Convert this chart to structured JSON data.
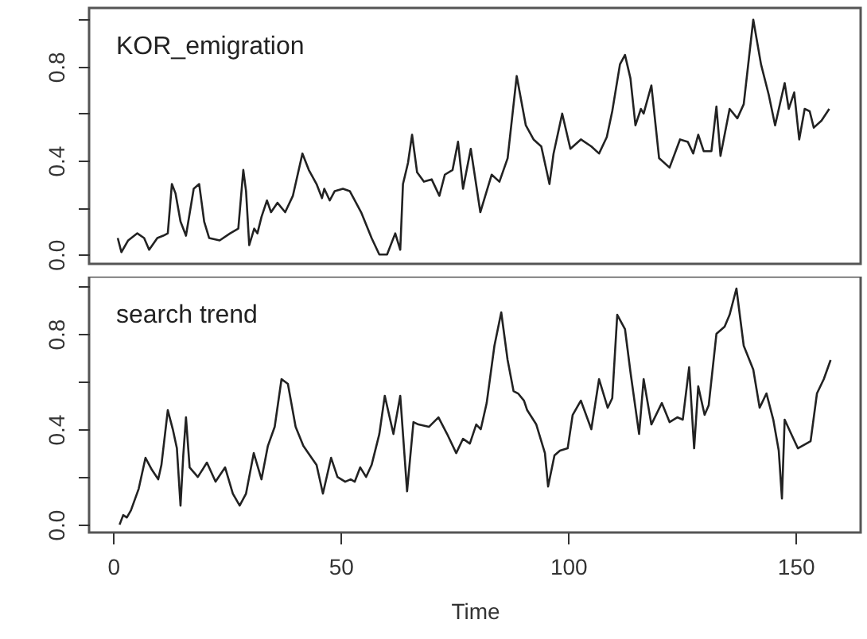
{
  "chart_data": [
    {
      "type": "line",
      "annotations": [
        "KOR_emigration"
      ],
      "tick_labels": "y",
      "xlim": [
        -5.3,
        164.3
      ],
      "xticks": [
        0,
        50,
        100,
        150
      ],
      "ylim": [
        -0.04,
        1.05
      ],
      "yticks": [
        {
          "value": 0,
          "label": "0.0"
        },
        {
          "value": 0.2,
          "label": null
        },
        {
          "value": 0.4,
          "label": "0.4"
        },
        {
          "value": 0.6,
          "label": null
        },
        {
          "value": 0.8,
          "label": "0.8"
        },
        {
          "value": 1.0,
          "label": null
        }
      ],
      "x": [
        1,
        1.8,
        3.3,
        5.3,
        6.8,
        7.9,
        9.7,
        11,
        12,
        12.9,
        13.7,
        14.8,
        16,
        17.7,
        18.9,
        20,
        21.1,
        23.4,
        25.7,
        27.5,
        28.6,
        29.2,
        29.9,
        31,
        31.7,
        32.6,
        33.8,
        34.7,
        36.1,
        37.8,
        39.5,
        41.6,
        43,
        44.7,
        45.9,
        46.4,
        47.6,
        48.7,
        50.5,
        52,
        54.5,
        56.8,
        58.5,
        60.2,
        62,
        63.1,
        63.7,
        64.8,
        65.7,
        66.8,
        68.3,
        70,
        71.7,
        72.9,
        74.6,
        75.8,
        76.9,
        78.6,
        80.7,
        83.2,
        84.9,
        86.7,
        88.7,
        90.7,
        92.4,
        94.1,
        95.9,
        96.8,
        98.7,
        100.5,
        102.8,
        105.1,
        106.8,
        108.5,
        109.7,
        111.4,
        112.5,
        113.7,
        114.8,
        116,
        116.6,
        118.3,
        120,
        122.3,
        124.6,
        126.3,
        127.5,
        128.6,
        129.8,
        131.5,
        132.6,
        133.5,
        135.5,
        137.2,
        138.6,
        140.7,
        142.4,
        144.1,
        145.5,
        147.6,
        148.5,
        149.7,
        150.8,
        152,
        153.1,
        154,
        155.7,
        157.4
      ],
      "series": [
        {
          "color": "#222222",
          "values": [
            0.07,
            0.01,
            0.06,
            0.09,
            0.07,
            0.02,
            0.07,
            0.08,
            0.09,
            0.3,
            0.26,
            0.14,
            0.08,
            0.28,
            0.3,
            0.14,
            0.07,
            0.06,
            0.09,
            0.11,
            0.36,
            0.27,
            0.04,
            0.11,
            0.09,
            0.16,
            0.23,
            0.18,
            0.22,
            0.18,
            0.25,
            0.43,
            0.36,
            0.3,
            0.24,
            0.28,
            0.23,
            0.27,
            0.28,
            0.27,
            0.18,
            0.07,
            0.0,
            0.0,
            0.09,
            0.02,
            0.3,
            0.39,
            0.51,
            0.35,
            0.31,
            0.32,
            0.25,
            0.34,
            0.36,
            0.48,
            0.28,
            0.45,
            0.18,
            0.34,
            0.31,
            0.41,
            0.76,
            0.55,
            0.49,
            0.46,
            0.3,
            0.43,
            0.6,
            0.45,
            0.49,
            0.46,
            0.43,
            0.5,
            0.61,
            0.81,
            0.85,
            0.75,
            0.55,
            0.62,
            0.6,
            0.72,
            0.41,
            0.37,
            0.49,
            0.48,
            0.43,
            0.51,
            0.44,
            0.44,
            0.63,
            0.42,
            0.62,
            0.58,
            0.64,
            1.0,
            0.81,
            0.68,
            0.55,
            0.73,
            0.62,
            0.69,
            0.49,
            0.62,
            0.61,
            0.54,
            0.57,
            0.62
          ]
        }
      ]
    },
    {
      "type": "line",
      "annotations": [
        "search trend"
      ],
      "xlabel": "Time",
      "xlim": [
        -5.3,
        164.3
      ],
      "xticks": [
        0,
        50,
        100,
        150
      ],
      "ylim": [
        -0.033,
        1.04
      ],
      "yticks": [
        {
          "value": 0,
          "label": "0.0"
        },
        {
          "value": 0.2,
          "label": null
        },
        {
          "value": 0.4,
          "label": "0.4"
        },
        {
          "value": 0.6,
          "label": null
        },
        {
          "value": 0.8,
          "label": "0.8"
        },
        {
          "value": 1.0,
          "label": null
        }
      ],
      "x": [
        1.4,
        2.2,
        3,
        3.9,
        5.6,
        7.1,
        8.5,
        9.9,
        10.6,
        12,
        13.1,
        14,
        14.8,
        15.4,
        16,
        16.8,
        18.6,
        20.6,
        22.5,
        24.6,
        26.3,
        27.8,
        29.2,
        30.9,
        32.6,
        34,
        35.5,
        37,
        38.4,
        40.1,
        41.8,
        43.6,
        44.7,
        46.1,
        47.9,
        49.3,
        51,
        52.2,
        53.1,
        54.3,
        55.6,
        56.8,
        58.5,
        59.7,
        61.6,
        63.1,
        64.6,
        66,
        67.1,
        69.4,
        71.5,
        73.4,
        75.4,
        76.9,
        78.4,
        79.8,
        80.8,
        82.1,
        83.8,
        85.3,
        86.7,
        88,
        89,
        90.3,
        91,
        93,
        94.9,
        95.6,
        97,
        98.2,
        99.9,
        101,
        102.8,
        105.1,
        106.8,
        108.7,
        109.7,
        110.8,
        112.5,
        113.7,
        115.6,
        116.6,
        118.3,
        120.6,
        122.3,
        124,
        125.2,
        126.6,
        127.7,
        128.6,
        130,
        130.9,
        132.6,
        134.4,
        135.5,
        137,
        138.6,
        140.7,
        142.1,
        143.6,
        145.1,
        146.3,
        147,
        147.6,
        148.8,
        150.5,
        153.3,
        154.7,
        156.2,
        157.7
      ],
      "series": [
        {
          "color": "#222222",
          "values": [
            0.0,
            0.04,
            0.03,
            0.06,
            0.15,
            0.28,
            0.23,
            0.19,
            0.25,
            0.48,
            0.4,
            0.32,
            0.08,
            0.29,
            0.45,
            0.24,
            0.2,
            0.26,
            0.18,
            0.24,
            0.13,
            0.08,
            0.13,
            0.3,
            0.19,
            0.33,
            0.41,
            0.61,
            0.59,
            0.41,
            0.33,
            0.28,
            0.25,
            0.13,
            0.28,
            0.2,
            0.18,
            0.19,
            0.18,
            0.24,
            0.2,
            0.25,
            0.38,
            0.54,
            0.38,
            0.54,
            0.14,
            0.43,
            0.42,
            0.41,
            0.45,
            0.38,
            0.3,
            0.36,
            0.34,
            0.42,
            0.4,
            0.51,
            0.75,
            0.89,
            0.69,
            0.56,
            0.55,
            0.52,
            0.48,
            0.42,
            0.3,
            0.16,
            0.29,
            0.31,
            0.32,
            0.46,
            0.52,
            0.4,
            0.61,
            0.49,
            0.53,
            0.88,
            0.82,
            0.64,
            0.38,
            0.61,
            0.42,
            0.51,
            0.43,
            0.45,
            0.44,
            0.66,
            0.32,
            0.58,
            0.46,
            0.5,
            0.8,
            0.83,
            0.88,
            0.99,
            0.75,
            0.65,
            0.49,
            0.55,
            0.44,
            0.31,
            0.11,
            0.44,
            0.39,
            0.32,
            0.35,
            0.55,
            0.61,
            0.69
          ]
        }
      ]
    }
  ]
}
